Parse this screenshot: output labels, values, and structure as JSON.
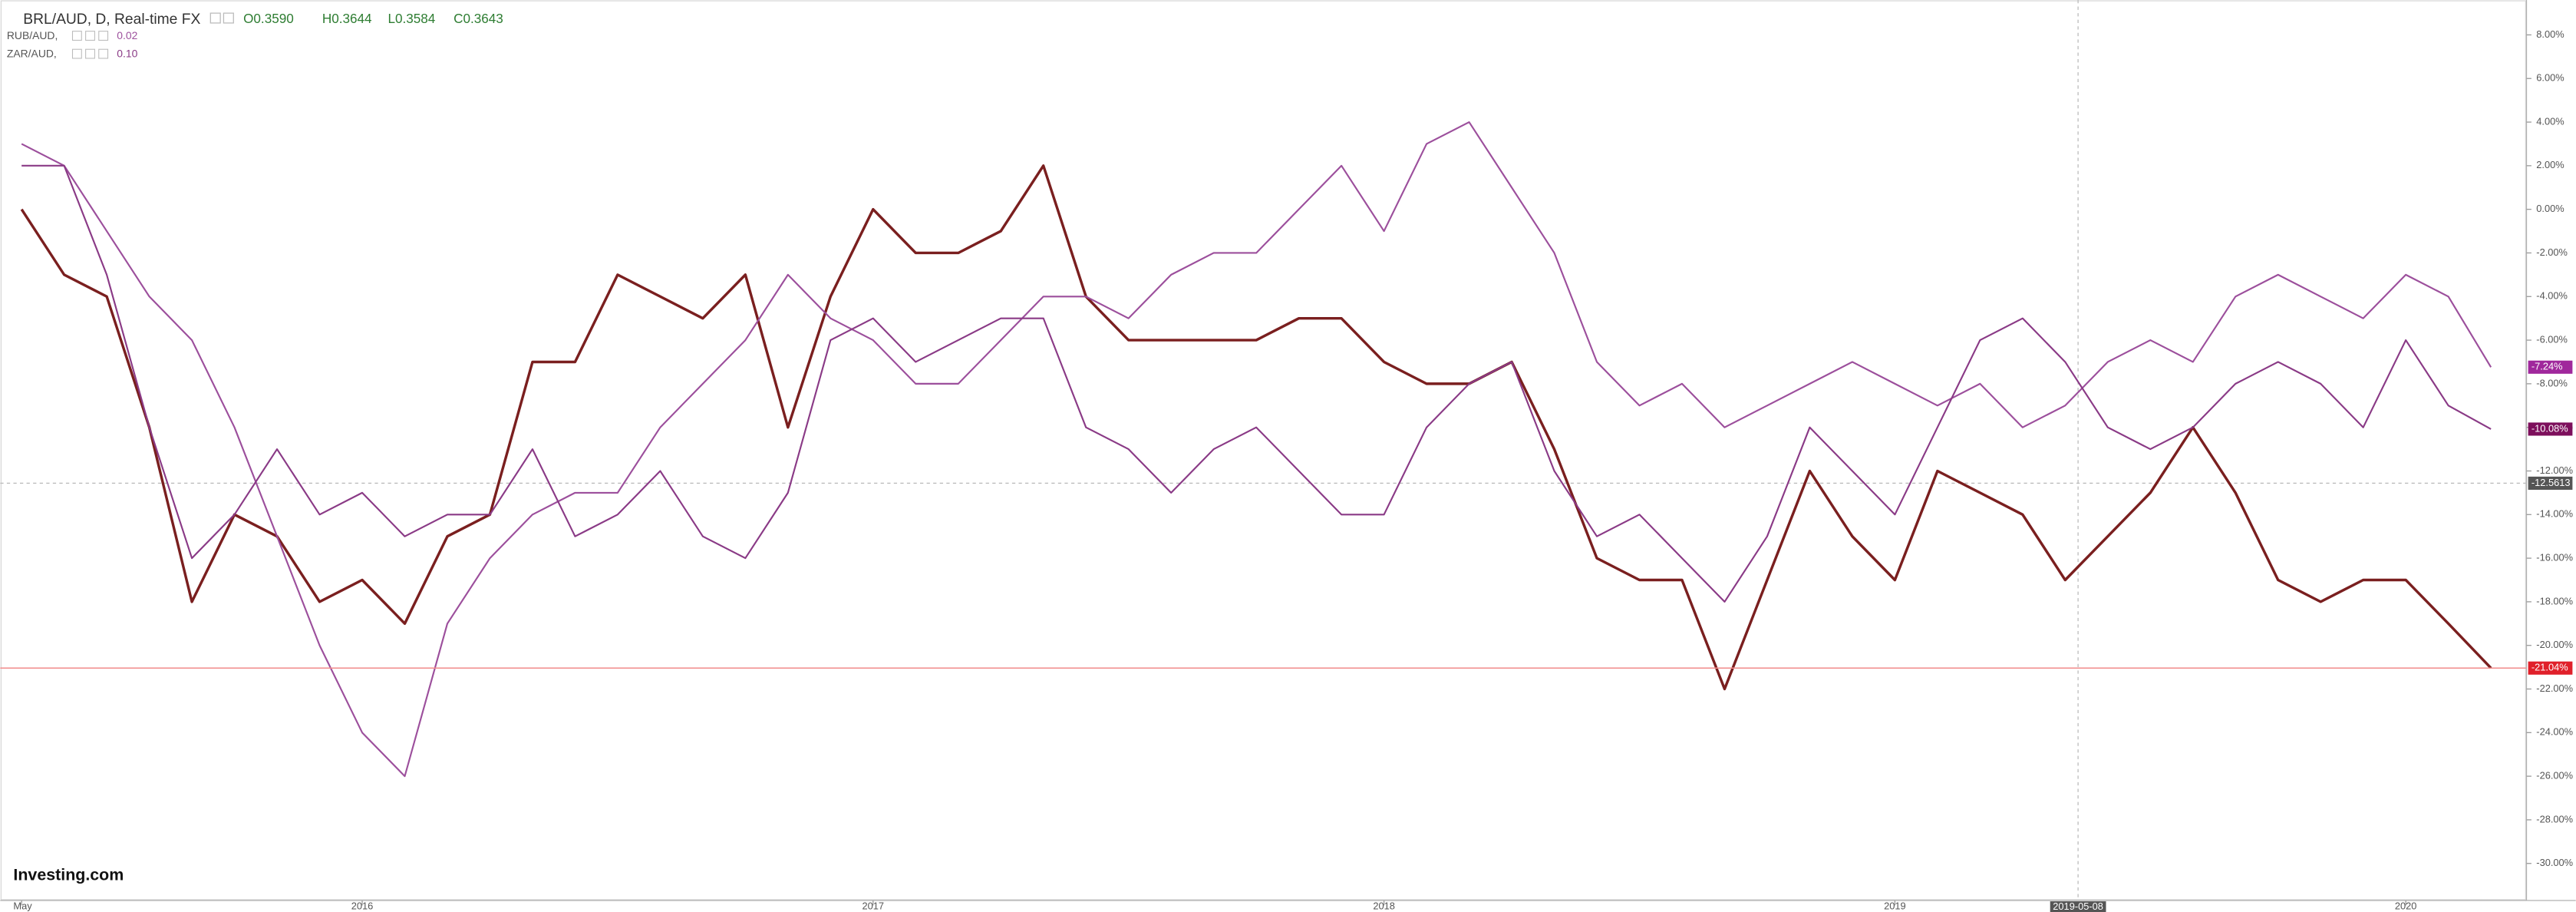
{
  "chart_data": {
    "type": "line",
    "title": "BRL/AUD, D, Real-time FX",
    "ohlc": [
      "O0.3590",
      "H0.3644",
      "L0.3584",
      "C0.3643"
    ],
    "logo": "Investing.com",
    "categories": [
      "May",
      null,
      null,
      null,
      null,
      null,
      null,
      null,
      "2016",
      null,
      null,
      null,
      null,
      null,
      null,
      null,
      null,
      null,
      null,
      null,
      "2017",
      null,
      null,
      null,
      null,
      null,
      null,
      null,
      null,
      null,
      null,
      null,
      "2018",
      null,
      null,
      null,
      null,
      null,
      null,
      null,
      null,
      null,
      null,
      null,
      "2019",
      null,
      null,
      null,
      null,
      null,
      null,
      null,
      null,
      null,
      null,
      null,
      "2020",
      null,
      null
    ],
    "series": [
      {
        "name": "BRL/AUD",
        "color": "#7a1f1f",
        "last_label": "-21.04%",
        "label_color": "#e0202a",
        "values": [
          0,
          -3,
          -4,
          -10,
          -18,
          -14,
          -15,
          -18,
          -17,
          -19,
          -15,
          -14,
          -7,
          -7,
          -3,
          -4,
          -5,
          -3,
          -10,
          -4,
          0,
          -2,
          -2,
          -1,
          2,
          -4,
          -6,
          -6,
          -6,
          -6,
          -5,
          -5,
          -7,
          -8,
          -8,
          -7,
          -11,
          -16,
          -17,
          -17,
          -22,
          -17,
          -12,
          -15,
          -17,
          -12,
          -13,
          -14,
          -17,
          -15,
          -13,
          -10,
          -13,
          -17,
          -18,
          -17,
          -17,
          -19,
          -21.04
        ]
      },
      {
        "name": "RUB/AUD,",
        "color": "#9c4f9c",
        "legend_value": "0.02",
        "last_label": "-7.24%",
        "label_color": "#a0289c",
        "values": [
          3,
          2,
          -1,
          -4,
          -6,
          -10,
          -15,
          -20,
          -24,
          -26,
          -19,
          -16,
          -14,
          -13,
          -13,
          -10,
          -8,
          -6,
          -3,
          -5,
          -6,
          -8,
          -8,
          -6,
          -4,
          -4,
          -5,
          -3,
          -2,
          -2,
          0,
          2,
          -1,
          3,
          4,
          1,
          -2,
          -7,
          -9,
          -8,
          -10,
          -9,
          -8,
          -7,
          -8,
          -9,
          -8,
          -10,
          -9,
          -7,
          -6,
          -7,
          -4,
          -3,
          -4,
          -5,
          -3,
          -4,
          -7.24
        ]
      },
      {
        "name": "ZAR/AUD,",
        "color": "#8a3a86",
        "legend_value": "0.10",
        "last_label": "-10.08%",
        "label_color": "#7d0f5c",
        "values": [
          2,
          2,
          -3,
          -10,
          -16,
          -14,
          -11,
          -14,
          -13,
          -15,
          -14,
          -14,
          -11,
          -15,
          -14,
          -12,
          -15,
          -16,
          -13,
          -6,
          -5,
          -7,
          -6,
          -5,
          -5,
          -10,
          -11,
          -13,
          -11,
          -10,
          -12,
          -14,
          -14,
          -10,
          -8,
          -7,
          -12,
          -15,
          -14,
          -16,
          -18,
          -15,
          -10,
          -12,
          -14,
          -10,
          -6,
          -5,
          -7,
          -10,
          -11,
          -10,
          -8,
          -7,
          -8,
          -10,
          -6,
          -9,
          -10.08
        ]
      }
    ],
    "ylim": [
      -31.7,
      9.6
    ],
    "yticks": [
      {
        "value": 8,
        "label": "8.00%"
      },
      {
        "value": 6,
        "label": "6.00%"
      },
      {
        "value": 4,
        "label": "4.00%"
      },
      {
        "value": 2,
        "label": "2.00%"
      },
      {
        "value": 0,
        "label": "0.00%"
      },
      {
        "value": -2,
        "label": "-2.00%"
      },
      {
        "value": -4,
        "label": "-4.00%"
      },
      {
        "value": -6,
        "label": "-6.00%"
      },
      {
        "value": -8,
        "label": "-8.00%"
      },
      {
        "value": -10,
        "label": "-10.00%"
      },
      {
        "value": -12,
        "label": "-12.00%"
      },
      {
        "value": -14,
        "label": "-14.00%"
      },
      {
        "value": -16,
        "label": "-16.00%"
      },
      {
        "value": -18,
        "label": "-18.00%"
      },
      {
        "value": -20,
        "label": "-20.00%"
      },
      {
        "value": -22,
        "label": "-22.00%"
      },
      {
        "value": -24,
        "label": "-24.00%"
      },
      {
        "value": -26,
        "label": "-26.00%"
      },
      {
        "value": -28,
        "label": "-28.00%"
      },
      {
        "value": -30,
        "label": "-30.00%"
      }
    ],
    "crosshair": {
      "x": "2019-05-08",
      "y": -12.5613
    },
    "grid": false
  }
}
